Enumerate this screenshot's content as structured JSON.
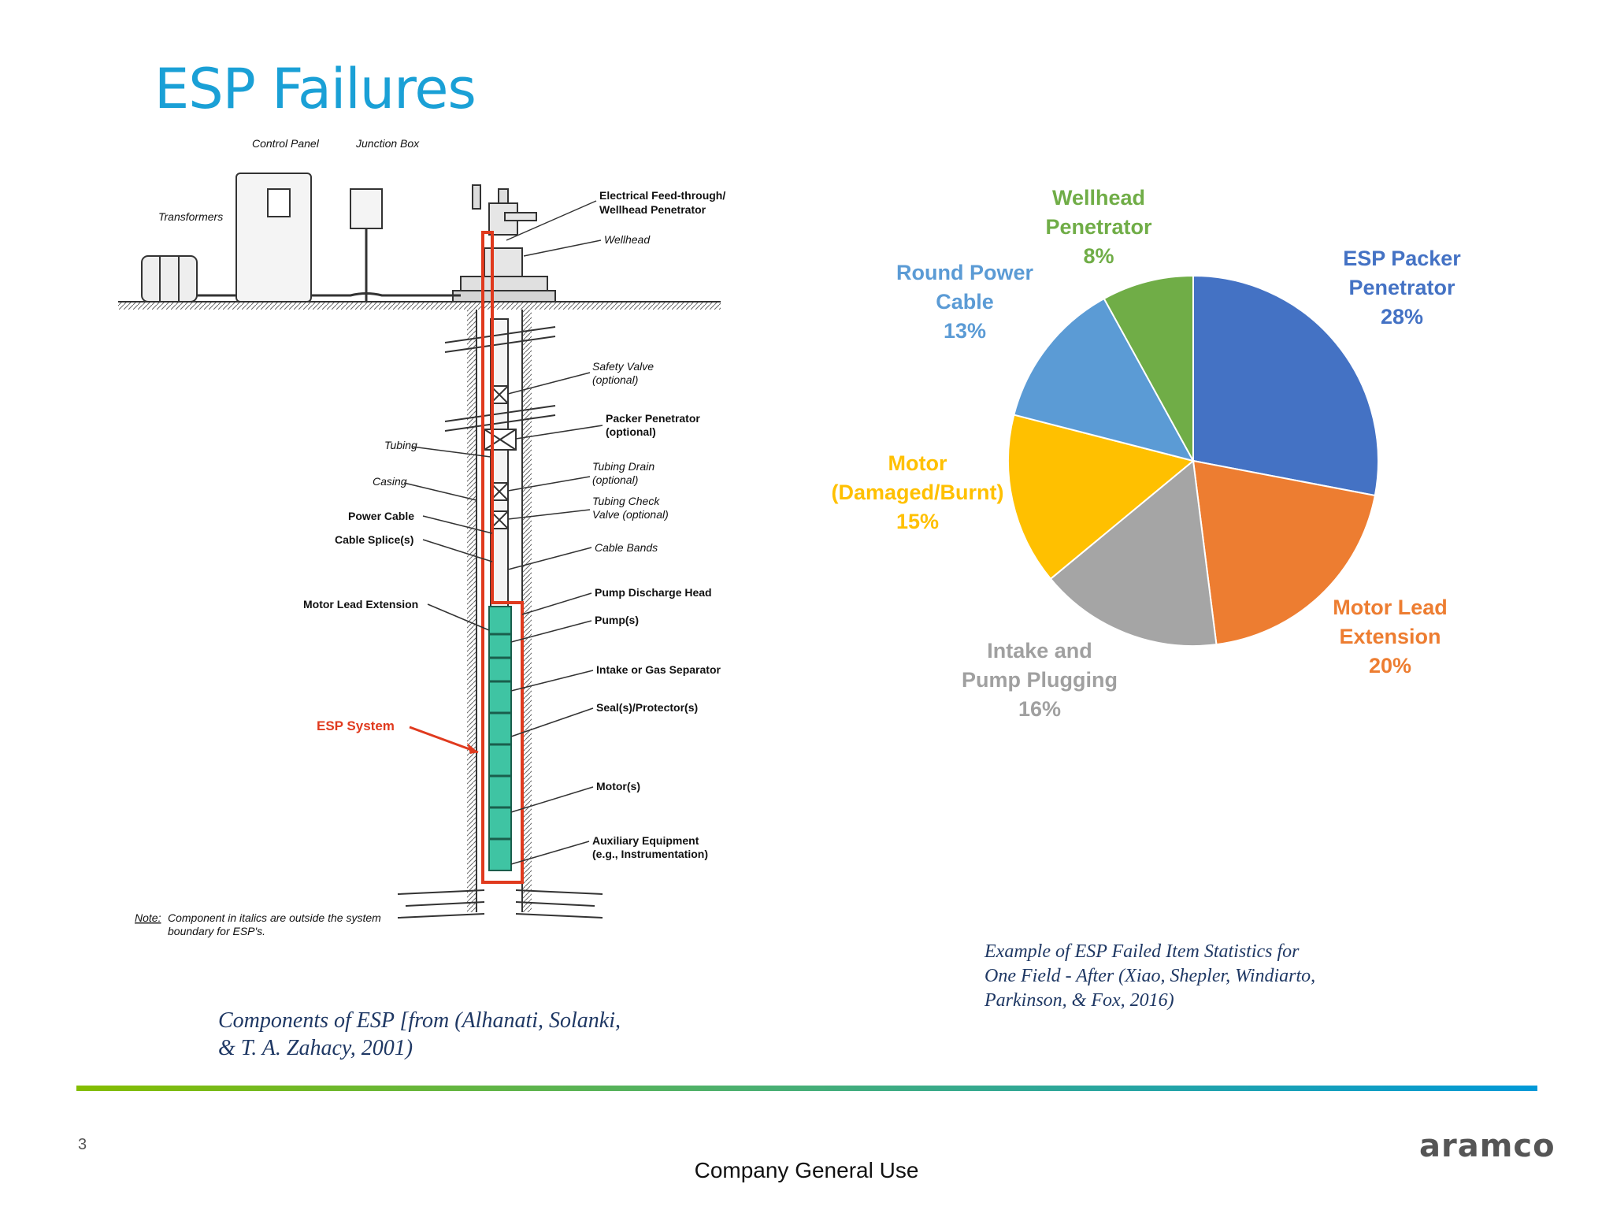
{
  "slide": {
    "title": "ESP Failures",
    "page_number": "3",
    "logo_text": "aramco",
    "footer": "Company General Use"
  },
  "diagram": {
    "labels": {
      "control_panel": "Control Panel",
      "junction_box": "Junction Box",
      "transformers": "Transformers",
      "feed_through_1": "Electrical Feed-through/",
      "feed_through_2": "Wellhead Penetrator",
      "wellhead": "Wellhead",
      "safety_valve_1": "Safety Valve",
      "safety_valve_2": "(optional)",
      "packer_1": "Packer Penetrator",
      "packer_2": "(optional)",
      "tubing": "Tubing",
      "casing": "Casing",
      "power_cable": "Power Cable",
      "cable_splice": "Cable Splice(s)",
      "tubing_drain_1": "Tubing Drain",
      "tubing_drain_2": "(optional)",
      "check_valve_1": "Tubing Check",
      "check_valve_2": "Valve (optional)",
      "cable_bands": "Cable Bands",
      "motor_lead": "Motor Lead Extension",
      "pump_discharge": "Pump Discharge Head",
      "pumps": "Pump(s)",
      "intake": "Intake or Gas Separator",
      "seal": "Seal(s)/Protector(s)",
      "esp_system": "ESP System",
      "motors": "Motor(s)",
      "aux_1": "Auxiliary Equipment",
      "aux_2": "(e.g., Instrumentation)",
      "note_label": "Note:",
      "note_1": "Component in italics are outside the system",
      "note_2": "boundary for ESP's."
    },
    "caption_line1": "Components of ESP [from (Alhanati, Solanki,",
    "caption_line2": "& T. A. Zahacy, 2001)"
  },
  "chart_data": {
    "type": "pie",
    "slices": [
      {
        "label_lines": [
          "ESP Packer",
          "Penetrator"
        ],
        "percent_label": "28%",
        "value": 28,
        "color": "#4472c4"
      },
      {
        "label_lines": [
          "Motor Lead",
          "Extension"
        ],
        "percent_label": "20%",
        "value": 20,
        "color": "#ed7d31"
      },
      {
        "label_lines": [
          "Intake and",
          "Pump Plugging"
        ],
        "percent_label": "16%",
        "value": 16,
        "color": "#a5a5a5"
      },
      {
        "label_lines": [
          "Motor",
          "(Damaged/Burnt)"
        ],
        "percent_label": "15%",
        "value": 15,
        "color": "#ffc000"
      },
      {
        "label_lines": [
          "Round Power",
          "Cable"
        ],
        "percent_label": "13%",
        "value": 13,
        "color": "#5b9bd5"
      },
      {
        "label_lines": [
          "Wellhead",
          "Penetrator"
        ],
        "percent_label": "8%",
        "value": 8,
        "color": "#70ad47"
      }
    ],
    "caption_line1": "Example of ESP Failed Item Statistics for",
    "caption_line2": "One Field - After (Xiao, Shepler, Windiarto,",
    "caption_line3": "Parkinson, & Fox, 2016)"
  }
}
